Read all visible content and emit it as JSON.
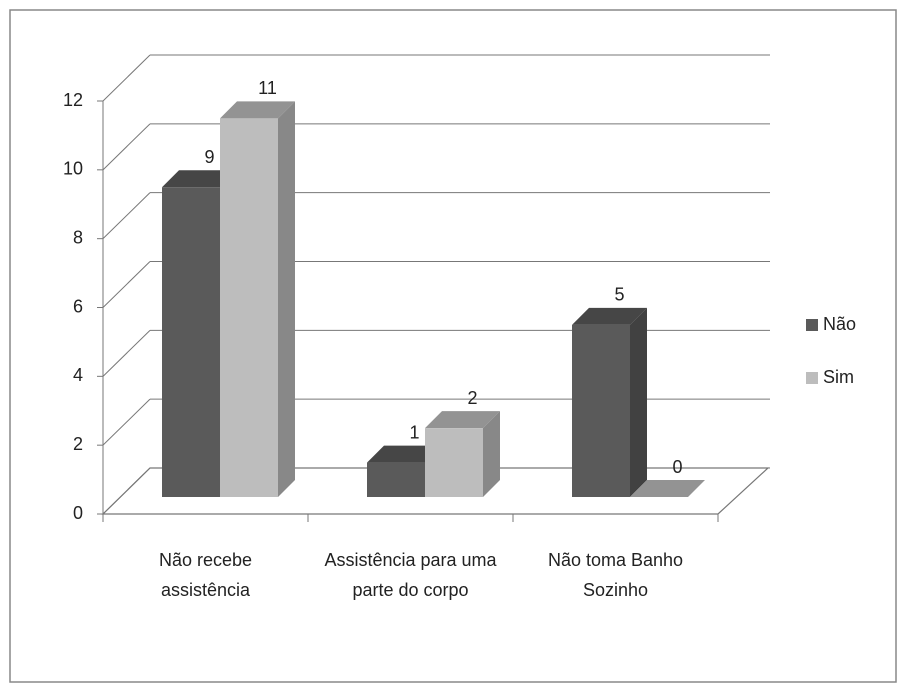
{
  "chart_data": {
    "type": "bar3d",
    "categories": [
      "Não recebe assistência",
      "Assistência para uma parte do corpo",
      "Não toma Banho Sozinho"
    ],
    "series": [
      {
        "name": "Não",
        "color": "#5a5a5a",
        "values": [
          9,
          1,
          5
        ]
      },
      {
        "name": "Sim",
        "color": "#bdbdbd",
        "values": [
          11,
          2,
          0
        ]
      }
    ],
    "ylim": [
      0,
      12
    ],
    "yticks": [
      0,
      2,
      4,
      6,
      8,
      10,
      12
    ],
    "grid": true,
    "legend": "right"
  }
}
